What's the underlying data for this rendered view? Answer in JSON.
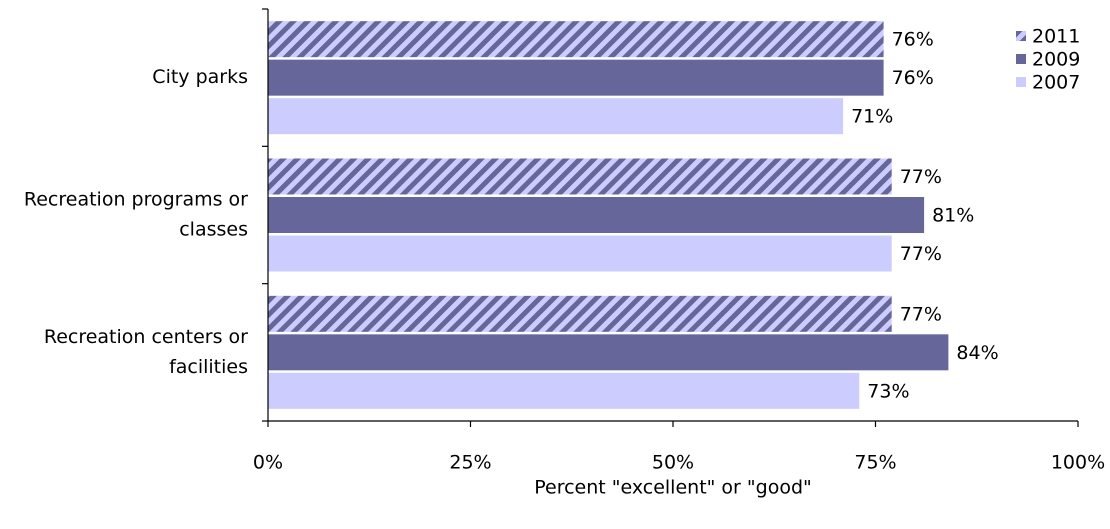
{
  "chart_data": {
    "type": "bar",
    "orientation": "horizontal",
    "categories": [
      [
        "City parks"
      ],
      [
        "Recreation programs or",
        "classes"
      ],
      [
        "Recreation centers or",
        "facilities"
      ]
    ],
    "series": [
      {
        "name": "2011",
        "values": [
          76,
          77,
          77
        ],
        "labels": [
          "76%",
          "77%",
          "77%"
        ],
        "color": "#66669a",
        "pattern": "diagonal-hatch"
      },
      {
        "name": "2009",
        "values": [
          76,
          81,
          84
        ],
        "labels": [
          "76%",
          "81%",
          "84%"
        ],
        "color": "#66669a",
        "pattern": "solid"
      },
      {
        "name": "2007",
        "values": [
          71,
          77,
          73
        ],
        "labels": [
          "71%",
          "77%",
          "73%"
        ],
        "color": "#ccccff",
        "pattern": "solid"
      }
    ],
    "x_ticks": [
      0,
      25,
      50,
      75,
      100
    ],
    "x_tick_labels": [
      "0%",
      "25%",
      "50%",
      "75%",
      "100%"
    ],
    "xlabel": "Percent \"excellent\" or \"good\"",
    "xlim": [
      0,
      100
    ],
    "grid": false,
    "legend_position": "top-right"
  }
}
